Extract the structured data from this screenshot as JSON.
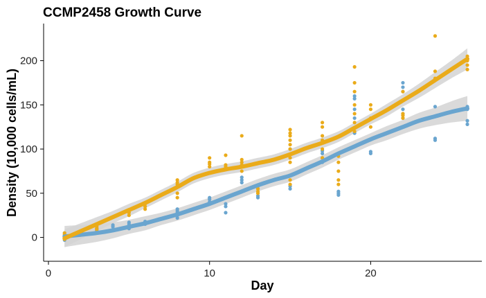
{
  "chart_data": {
    "type": "scatter",
    "title": "CCMP2458 Growth Curve",
    "xlabel": "Day",
    "ylabel": "Density (10,000 cells/mL)",
    "xlim": [
      -0.3,
      26.9
    ],
    "ylim": [
      -27,
      242
    ],
    "x_ticks": [
      0,
      10,
      20
    ],
    "y_ticks": [
      0,
      50,
      100,
      150,
      200
    ],
    "grid": false,
    "legend": "none",
    "colors": {
      "blue": "#6aa5cf",
      "orange": "#eaab1a",
      "band": "#d3d3d3"
    },
    "series": [
      {
        "color": "#eaab1a",
        "points": [
          [
            1,
            5
          ],
          [
            1,
            3
          ],
          [
            1,
            -2
          ],
          [
            1,
            0
          ],
          [
            3,
            10
          ],
          [
            3,
            12
          ],
          [
            3,
            9
          ],
          [
            5,
            25
          ],
          [
            5,
            28
          ],
          [
            5,
            30
          ],
          [
            6,
            32
          ],
          [
            6,
            35
          ],
          [
            6,
            38
          ],
          [
            8,
            45
          ],
          [
            8,
            50
          ],
          [
            8,
            60
          ],
          [
            8,
            62
          ],
          [
            8,
            65
          ],
          [
            10,
            80
          ],
          [
            10,
            83
          ],
          [
            10,
            85
          ],
          [
            10,
            90
          ],
          [
            11,
            80
          ],
          [
            11,
            82
          ],
          [
            11,
            93
          ],
          [
            12,
            75
          ],
          [
            12,
            82
          ],
          [
            12,
            85
          ],
          [
            12,
            88
          ],
          [
            12,
            115
          ],
          [
            13,
            50
          ],
          [
            13,
            52
          ],
          [
            13,
            55
          ],
          [
            13,
            58
          ],
          [
            15,
            60
          ],
          [
            15,
            65
          ],
          [
            15,
            70
          ],
          [
            15,
            85
          ],
          [
            15,
            90
          ],
          [
            15,
            100
          ],
          [
            15,
            105
          ],
          [
            15,
            110
          ],
          [
            15,
            115
          ],
          [
            15,
            118
          ],
          [
            15,
            122
          ],
          [
            17,
            90
          ],
          [
            17,
            100
          ],
          [
            17,
            110
          ],
          [
            17,
            115
          ],
          [
            17,
            125
          ],
          [
            17,
            130
          ],
          [
            18,
            60
          ],
          [
            18,
            65
          ],
          [
            18,
            75
          ],
          [
            18,
            85
          ],
          [
            18,
            92
          ],
          [
            19,
            120
          ],
          [
            19,
            130
          ],
          [
            19,
            140
          ],
          [
            19,
            150
          ],
          [
            19,
            165
          ],
          [
            19,
            175
          ],
          [
            19,
            193
          ],
          [
            20,
            125
          ],
          [
            20,
            135
          ],
          [
            20,
            145
          ],
          [
            20,
            150
          ],
          [
            22,
            135
          ],
          [
            22,
            138
          ],
          [
            22,
            140
          ],
          [
            22,
            165
          ],
          [
            24,
            180
          ],
          [
            24,
            188
          ],
          [
            24,
            228
          ],
          [
            26,
            190
          ],
          [
            26,
            195
          ],
          [
            26,
            200
          ],
          [
            26,
            205
          ]
        ],
        "trend": [
          [
            1,
            -1
          ],
          [
            2,
            7
          ],
          [
            3,
            15
          ],
          [
            4,
            23
          ],
          [
            5,
            31
          ],
          [
            6,
            39
          ],
          [
            7,
            48
          ],
          [
            8,
            57
          ],
          [
            9,
            67
          ],
          [
            10,
            73
          ],
          [
            11,
            77
          ],
          [
            12,
            80
          ],
          [
            13,
            84
          ],
          [
            14,
            88
          ],
          [
            15,
            94
          ],
          [
            16,
            101
          ],
          [
            17,
            107
          ],
          [
            18,
            114
          ],
          [
            19,
            124
          ],
          [
            20,
            134
          ],
          [
            21,
            144
          ],
          [
            22,
            155
          ],
          [
            23,
            166
          ],
          [
            24,
            178
          ],
          [
            25,
            190
          ],
          [
            26,
            202
          ]
        ],
        "band_halfwidth": [
          10,
          9,
          8,
          7,
          7,
          6,
          6,
          6,
          6,
          6,
          6,
          6,
          6,
          6,
          6,
          6,
          6,
          6,
          6,
          6,
          7,
          7,
          8,
          9,
          10,
          12
        ]
      },
      {
        "color": "#6aa5cf",
        "points": [
          [
            1,
            5
          ],
          [
            1,
            3
          ],
          [
            1,
            0
          ],
          [
            1,
            -3
          ],
          [
            3,
            10
          ],
          [
            3,
            8
          ],
          [
            4,
            8
          ],
          [
            4,
            12
          ],
          [
            4,
            14
          ],
          [
            5,
            10
          ],
          [
            5,
            15
          ],
          [
            5,
            17
          ],
          [
            6,
            15
          ],
          [
            6,
            18
          ],
          [
            8,
            22
          ],
          [
            8,
            25
          ],
          [
            8,
            28
          ],
          [
            8,
            30
          ],
          [
            8,
            32
          ],
          [
            10,
            40
          ],
          [
            10,
            43
          ],
          [
            10,
            45
          ],
          [
            11,
            28
          ],
          [
            11,
            35
          ],
          [
            11,
            38
          ],
          [
            11,
            45
          ],
          [
            12,
            62
          ],
          [
            12,
            65
          ],
          [
            12,
            68
          ],
          [
            13,
            45
          ],
          [
            13,
            47
          ],
          [
            13,
            50
          ],
          [
            13,
            55
          ],
          [
            13,
            58
          ],
          [
            15,
            55
          ],
          [
            15,
            58
          ],
          [
            15,
            100
          ],
          [
            17,
            85
          ],
          [
            17,
            90
          ],
          [
            17,
            95
          ],
          [
            17,
            98
          ],
          [
            18,
            48
          ],
          [
            18,
            50
          ],
          [
            18,
            52
          ],
          [
            19,
            118
          ],
          [
            19,
            135
          ],
          [
            19,
            145
          ],
          [
            19,
            157
          ],
          [
            19,
            160
          ],
          [
            20,
            95
          ],
          [
            20,
            97
          ],
          [
            22,
            135
          ],
          [
            22,
            140
          ],
          [
            22,
            145
          ],
          [
            22,
            165
          ],
          [
            22,
            170
          ],
          [
            22,
            175
          ],
          [
            24,
            110
          ],
          [
            24,
            112
          ],
          [
            24,
            148
          ],
          [
            26,
            128
          ],
          [
            26,
            132
          ],
          [
            26,
            145
          ],
          [
            26,
            148
          ]
        ],
        "trend": [
          [
            1,
            1
          ],
          [
            2,
            3
          ],
          [
            3,
            5
          ],
          [
            4,
            8
          ],
          [
            5,
            12
          ],
          [
            6,
            16
          ],
          [
            7,
            21
          ],
          [
            8,
            26
          ],
          [
            9,
            32
          ],
          [
            10,
            38
          ],
          [
            11,
            45
          ],
          [
            12,
            52
          ],
          [
            13,
            59
          ],
          [
            14,
            65
          ],
          [
            15,
            70
          ],
          [
            16,
            78
          ],
          [
            17,
            86
          ],
          [
            18,
            95
          ],
          [
            19,
            103
          ],
          [
            20,
            111
          ],
          [
            21,
            118
          ],
          [
            22,
            125
          ],
          [
            23,
            132
          ],
          [
            24,
            137
          ],
          [
            25,
            142
          ],
          [
            26,
            146
          ]
        ],
        "band_halfwidth": [
          12,
          11,
          10,
          9,
          8,
          8,
          7,
          7,
          7,
          7,
          7,
          7,
          7,
          7,
          7,
          7,
          7,
          7,
          7,
          7,
          8,
          8,
          9,
          10,
          12,
          14
        ]
      }
    ]
  }
}
